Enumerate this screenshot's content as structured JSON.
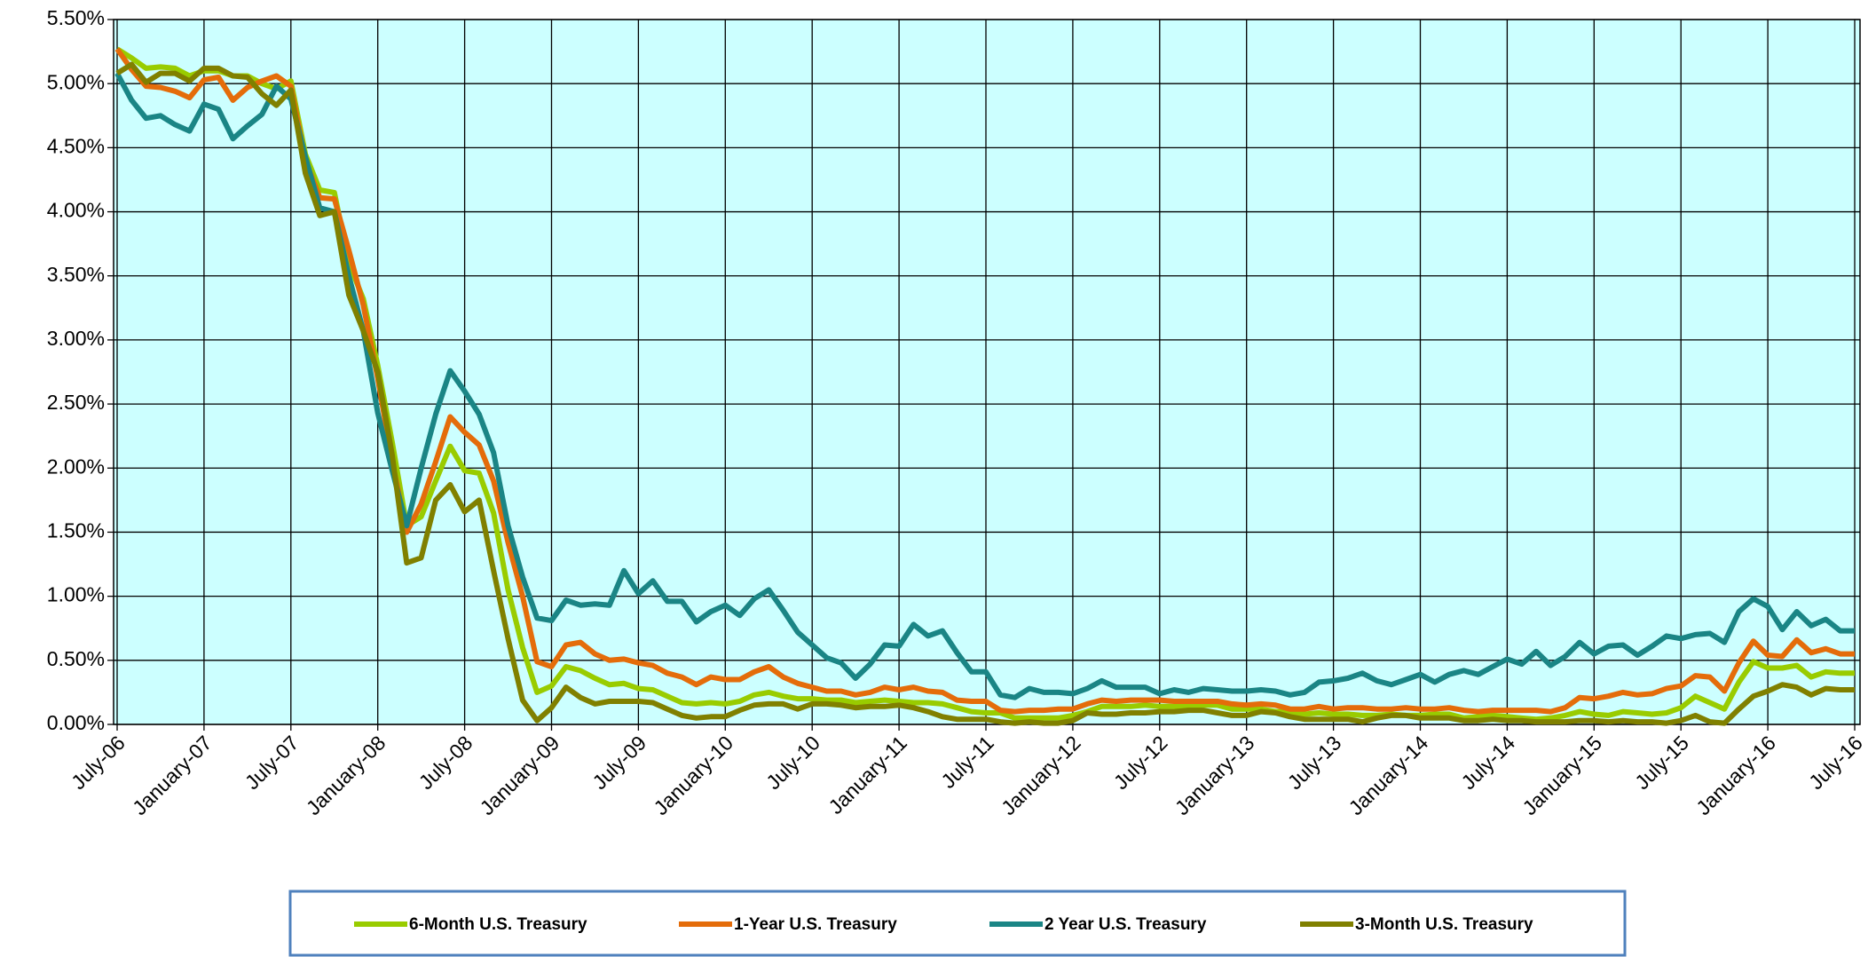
{
  "chart_data": {
    "type": "line",
    "categories": [
      "July-06",
      null,
      null,
      null,
      null,
      null,
      "January-07",
      null,
      null,
      null,
      null,
      null,
      "July-07",
      null,
      null,
      null,
      null,
      null,
      "January-08",
      null,
      null,
      null,
      null,
      null,
      "July-08",
      null,
      null,
      null,
      null,
      null,
      "January-09",
      null,
      null,
      null,
      null,
      null,
      "July-09",
      null,
      null,
      null,
      null,
      null,
      "January-10",
      null,
      null,
      null,
      null,
      null,
      "July-10",
      null,
      null,
      null,
      null,
      null,
      "January-11",
      null,
      null,
      null,
      null,
      null,
      "July-11",
      null,
      null,
      null,
      null,
      null,
      "January-12",
      null,
      null,
      null,
      null,
      null,
      "July-12",
      null,
      null,
      null,
      null,
      null,
      "January-13",
      null,
      null,
      null,
      null,
      null,
      "July-13",
      null,
      null,
      null,
      null,
      null,
      "January-14",
      null,
      null,
      null,
      null,
      null,
      "July-14",
      null,
      null,
      null,
      null,
      null,
      "January-15",
      null,
      null,
      null,
      null,
      null,
      "July-15",
      null,
      null,
      null,
      null,
      null,
      "January-16",
      null,
      null,
      null,
      null,
      null,
      "July-16"
    ],
    "series": [
      {
        "name": "6-Month U.S. Treasury",
        "color": "#99cc00",
        "values": [
          5.27,
          5.2,
          5.12,
          5.13,
          5.12,
          5.06,
          5.1,
          5.1,
          5.06,
          5.06,
          5.0,
          4.96,
          5.02,
          4.45,
          4.17,
          4.15,
          3.6,
          3.32,
          2.8,
          2.2,
          1.55,
          1.62,
          1.9,
          2.17,
          1.98,
          1.96,
          1.65,
          1.05,
          0.6,
          0.25,
          0.3,
          0.45,
          0.42,
          0.36,
          0.31,
          0.32,
          0.28,
          0.27,
          0.22,
          0.17,
          0.16,
          0.17,
          0.16,
          0.18,
          0.23,
          0.25,
          0.22,
          0.2,
          0.2,
          0.19,
          0.19,
          0.17,
          0.18,
          0.19,
          0.18,
          0.17,
          0.17,
          0.16,
          0.13,
          0.1,
          0.09,
          0.09,
          0.05,
          0.05,
          0.05,
          0.05,
          0.07,
          0.1,
          0.14,
          0.14,
          0.14,
          0.15,
          0.14,
          0.14,
          0.14,
          0.15,
          0.15,
          0.12,
          0.12,
          0.12,
          0.1,
          0.1,
          0.08,
          0.09,
          0.08,
          0.08,
          0.07,
          0.07,
          0.08,
          0.07,
          0.07,
          0.08,
          0.08,
          0.05,
          0.06,
          0.07,
          0.06,
          0.05,
          0.04,
          0.05,
          0.07,
          0.1,
          0.08,
          0.07,
          0.1,
          0.09,
          0.08,
          0.09,
          0.13,
          0.22,
          0.17,
          0.12,
          0.33,
          0.49,
          0.44,
          0.44,
          0.46,
          0.37,
          0.41,
          0.4,
          0.4
        ]
      },
      {
        "name": "1-Year U.S. Treasury",
        "color": "#e46c0a",
        "values": [
          5.27,
          5.11,
          4.98,
          4.97,
          4.94,
          4.89,
          5.03,
          5.05,
          4.87,
          4.97,
          5.02,
          5.06,
          4.98,
          4.4,
          4.11,
          4.1,
          3.7,
          3.27,
          2.7,
          2.05,
          1.5,
          1.72,
          2.05,
          2.4,
          2.28,
          2.18,
          1.9,
          1.42,
          1.0,
          0.49,
          0.45,
          0.62,
          0.64,
          0.55,
          0.5,
          0.51,
          0.48,
          0.46,
          0.4,
          0.37,
          0.31,
          0.37,
          0.35,
          0.35,
          0.41,
          0.45,
          0.37,
          0.32,
          0.29,
          0.26,
          0.26,
          0.23,
          0.25,
          0.29,
          0.27,
          0.29,
          0.26,
          0.25,
          0.19,
          0.18,
          0.18,
          0.11,
          0.1,
          0.11,
          0.11,
          0.12,
          0.12,
          0.16,
          0.19,
          0.18,
          0.19,
          0.19,
          0.19,
          0.18,
          0.18,
          0.18,
          0.18,
          0.16,
          0.15,
          0.16,
          0.15,
          0.12,
          0.12,
          0.14,
          0.12,
          0.13,
          0.13,
          0.12,
          0.12,
          0.13,
          0.12,
          0.12,
          0.13,
          0.11,
          0.1,
          0.11,
          0.11,
          0.11,
          0.11,
          0.1,
          0.13,
          0.21,
          0.2,
          0.22,
          0.25,
          0.23,
          0.24,
          0.28,
          0.3,
          0.38,
          0.37,
          0.26,
          0.48,
          0.65,
          0.54,
          0.53,
          0.66,
          0.56,
          0.59,
          0.55,
          0.55
        ]
      },
      {
        "name": "2 Year U.S. Treasury",
        "color": "#1a8585",
        "values": [
          5.08,
          4.87,
          4.73,
          4.75,
          4.68,
          4.63,
          4.84,
          4.8,
          4.57,
          4.67,
          4.76,
          4.98,
          4.88,
          4.43,
          4.03,
          4.0,
          3.5,
          3.07,
          2.43,
          1.98,
          1.55,
          2.0,
          2.42,
          2.76,
          2.6,
          2.42,
          2.12,
          1.55,
          1.15,
          0.83,
          0.81,
          0.97,
          0.93,
          0.94,
          0.93,
          1.2,
          1.02,
          1.12,
          0.96,
          0.96,
          0.8,
          0.88,
          0.93,
          0.85,
          0.98,
          1.05,
          0.89,
          0.72,
          0.62,
          0.52,
          0.48,
          0.36,
          0.47,
          0.62,
          0.61,
          0.78,
          0.69,
          0.73,
          0.56,
          0.41,
          0.41,
          0.23,
          0.21,
          0.28,
          0.25,
          0.25,
          0.24,
          0.28,
          0.34,
          0.29,
          0.29,
          0.29,
          0.24,
          0.27,
          0.25,
          0.28,
          0.27,
          0.26,
          0.26,
          0.27,
          0.26,
          0.23,
          0.25,
          0.33,
          0.34,
          0.36,
          0.4,
          0.34,
          0.31,
          0.35,
          0.39,
          0.33,
          0.39,
          0.42,
          0.39,
          0.45,
          0.51,
          0.47,
          0.57,
          0.46,
          0.53,
          0.64,
          0.55,
          0.61,
          0.62,
          0.54,
          0.61,
          0.69,
          0.67,
          0.7,
          0.71,
          0.64,
          0.88,
          0.98,
          0.92,
          0.74,
          0.88,
          0.77,
          0.82,
          0.73,
          0.73
        ]
      },
      {
        "name": "3-Month U.S. Treasury",
        "color": "#808000",
        "values": [
          5.08,
          5.15,
          5.01,
          5.08,
          5.08,
          5.02,
          5.12,
          5.12,
          5.06,
          5.05,
          4.92,
          4.83,
          4.95,
          4.3,
          3.97,
          4.0,
          3.35,
          3.07,
          2.75,
          2.1,
          1.26,
          1.3,
          1.75,
          1.87,
          1.66,
          1.75,
          1.2,
          0.67,
          0.19,
          0.03,
          0.13,
          0.29,
          0.21,
          0.16,
          0.18,
          0.18,
          0.18,
          0.17,
          0.12,
          0.07,
          0.05,
          0.06,
          0.06,
          0.11,
          0.15,
          0.16,
          0.16,
          0.12,
          0.16,
          0.16,
          0.15,
          0.13,
          0.14,
          0.14,
          0.15,
          0.13,
          0.1,
          0.06,
          0.04,
          0.04,
          0.04,
          0.02,
          0.01,
          0.02,
          0.01,
          0.01,
          0.03,
          0.09,
          0.08,
          0.08,
          0.09,
          0.09,
          0.1,
          0.1,
          0.11,
          0.11,
          0.09,
          0.07,
          0.07,
          0.1,
          0.09,
          0.06,
          0.04,
          0.04,
          0.04,
          0.04,
          0.02,
          0.05,
          0.07,
          0.07,
          0.05,
          0.05,
          0.05,
          0.03,
          0.03,
          0.04,
          0.03,
          0.03,
          0.02,
          0.02,
          0.02,
          0.03,
          0.03,
          0.02,
          0.03,
          0.02,
          0.02,
          0.01,
          0.03,
          0.07,
          0.02,
          0.01,
          0.12,
          0.22,
          0.26,
          0.31,
          0.29,
          0.23,
          0.28,
          0.27,
          0.27
        ]
      }
    ],
    "ylim": [
      0,
      5.5
    ],
    "yticks": [
      {
        "value": 0,
        "label": "0.00%"
      },
      {
        "value": 0.5,
        "label": "0.50%"
      },
      {
        "value": 1,
        "label": "1.00%"
      },
      {
        "value": 1.5,
        "label": "1.50%"
      },
      {
        "value": 2,
        "label": "2.00%"
      },
      {
        "value": 2.5,
        "label": "2.50%"
      },
      {
        "value": 3,
        "label": "3.00%"
      },
      {
        "value": 3.5,
        "label": "3.50%"
      },
      {
        "value": 4,
        "label": "4.00%"
      },
      {
        "value": 4.5,
        "label": "4.50%"
      },
      {
        "value": 5,
        "label": "5.00%"
      },
      {
        "value": 5.5,
        "label": "5.50%"
      }
    ],
    "grid": true,
    "legend": "bottom"
  }
}
